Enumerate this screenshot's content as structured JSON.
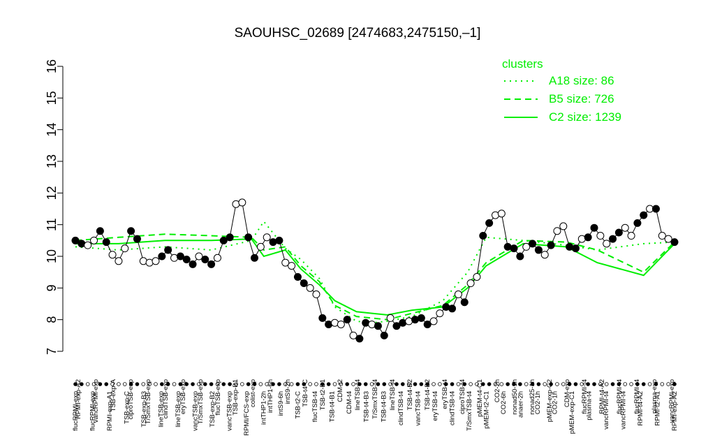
{
  "chart_data": {
    "type": "line",
    "title": "SAOUHSC_02689 [2474683,2475150,–1]",
    "xlabel": "",
    "ylabel": "",
    "ylim": [
      7,
      16
    ],
    "yticks": [
      7,
      8,
      9,
      10,
      11,
      12,
      13,
      14,
      15,
      16
    ],
    "grid": false,
    "legend": {
      "title": "clusters",
      "placement": "top-right",
      "entries": [
        {
          "label": "A18 size: 86",
          "style": "dotted"
        },
        {
          "label": "B5 size: 726",
          "style": "dashed"
        },
        {
          "label": "C2 size: 1239",
          "style": "solid"
        }
      ]
    },
    "colors": {
      "clusters": "#00ee00",
      "data": "#000000",
      "point_fill_dark": "#000000",
      "point_fill_light": "#ffffff"
    },
    "upper_labels": [
      "RPMI-exp-A2",
      "vancRPMI-exp",
      "TSB-exp-A",
      "ciproTSB-exp",
      "T/SmxTSB-exp",
      "clindTSB-exp",
      "eryTSB-exp",
      "T/SmxTSB-exp",
      "flucTSB-exp",
      "TSB-exp-B1",
      "colist-exp",
      "intTHP1-6h",
      "intS9-2h",
      "TSB-t4-C",
      "TSB-t2-B1",
      "CDM-t2",
      "lineTSB-t4",
      "T/SmxTSB-t4",
      "lineTSB-t4",
      "TSB-t4-B2",
      "TSB-t4-B2",
      "eryTSB-t4",
      "ciproTSB-t4",
      "pMEM-t4-C1",
      "CO2-2h",
      "nonad50-1h",
      "nonad25-1h",
      "pMEM-exp-C2",
      "CDM-exp",
      "flucRPMI-t4",
      "RPMI-t4-A2",
      "flucRPMI-t4",
      "flucRPMI-t4",
      "plasma-exp",
      "vancRPMI-exp"
    ],
    "lower_labels": [
      "flucRPMI-exp",
      "flucRPMI-exp",
      "RPMI-exp-A1",
      "TSB-exp-C",
      "TSB-exp-B3",
      "lineTSB-exp",
      "lineTSB-exp",
      "vancTSB-exp",
      "TSB-exp-B2",
      "vancTSB-exp",
      "RPMI/FCS-exp",
      "intTHP1-2h",
      "intS9-6h",
      "TSB-t2-C",
      "flucTSB-t4",
      "TSB-t4-B1",
      "CDM-t4",
      "TSB-t4-B3",
      "TSB-t4-B3",
      "clindTSB-t4",
      "vancTSB-t4",
      "eryTSB-t4",
      "clindTSB-t4",
      "T/SmxTSB-t4",
      "pMEM-t2-C1",
      "CO2-6h",
      "anaer-2h",
      "CO2-1h",
      "CO2-1h",
      "pMEM-exp-C1",
      "plasma-t4",
      "vancRPMI-t4",
      "vancRPMI-t4",
      "RPMI-t4-A2",
      "RPMI-t2-A1",
      "RPMI-exp-A2"
    ],
    "series": [
      {
        "style": "solid",
        "x": [
          1,
          15,
          30,
          45,
          58,
          62,
          69,
          74,
          80,
          85,
          92,
          97,
          102,
          110,
          120,
          128,
          134,
          146,
          160,
          170,
          185,
          195
        ],
        "y": [
          10.4,
          10.4,
          10.5,
          10.5,
          10.55,
          10.0,
          10.2,
          9.6,
          9.1,
          8.6,
          8.25,
          8.2,
          8.15,
          8.3,
          8.4,
          9.0,
          9.7,
          10.4,
          10.3,
          9.8,
          9.4,
          10.4
        ]
      },
      {
        "style": "dashed",
        "x": [
          1,
          15,
          30,
          45,
          58,
          62,
          69,
          74,
          80,
          85,
          92,
          97,
          102,
          110,
          120,
          128,
          134,
          146,
          160,
          170,
          185,
          195
        ],
        "y": [
          10.5,
          10.6,
          10.7,
          10.65,
          10.6,
          10.2,
          10.3,
          9.7,
          9.2,
          8.45,
          8.1,
          8.05,
          8.0,
          8.2,
          8.45,
          9.1,
          9.8,
          10.5,
          10.45,
          10.2,
          9.5,
          10.45
        ]
      },
      {
        "style": "dotted",
        "x": [
          1,
          15,
          30,
          45,
          58,
          62,
          69,
          74,
          80,
          85,
          92,
          97,
          102,
          110,
          120,
          128,
          134,
          146,
          160,
          170,
          185,
          195
        ],
        "y": [
          10.3,
          10.2,
          10.3,
          10.2,
          10.5,
          11.1,
          10.25,
          9.9,
          9.3,
          8.4,
          7.95,
          7.9,
          7.95,
          8.1,
          8.6,
          9.5,
          10.6,
          10.5,
          10.35,
          10.2,
          10.4,
          10.45
        ]
      }
    ],
    "points": {
      "x": [
        1,
        3,
        5,
        7,
        9,
        11,
        13,
        15,
        17,
        19,
        21,
        23,
        25,
        27,
        29,
        31,
        33,
        35,
        37,
        39,
        41,
        43,
        45,
        47,
        49,
        51,
        53,
        55,
        57,
        59,
        61,
        63,
        65,
        67,
        69,
        71,
        73,
        75,
        77,
        79,
        81,
        83,
        85,
        87,
        89,
        91,
        93,
        95,
        97,
        99,
        101,
        103,
        105,
        107,
        109,
        111,
        113,
        115,
        117,
        119,
        121,
        123,
        125,
        127,
        129,
        131,
        133,
        135,
        137,
        139,
        141,
        143,
        145,
        147,
        149,
        151,
        153,
        155,
        157,
        159,
        161,
        163,
        165,
        167,
        169,
        171,
        173,
        175,
        177,
        179,
        181,
        183,
        185,
        187,
        189,
        191,
        193,
        195
      ],
      "y": [
        10.5,
        10.4,
        10.35,
        10.5,
        10.8,
        10.45,
        10.05,
        9.85,
        10.25,
        10.8,
        10.55,
        9.85,
        9.8,
        9.85,
        10.0,
        10.2,
        9.95,
        10.0,
        9.9,
        9.75,
        10.0,
        9.9,
        9.75,
        9.95,
        10.5,
        10.6,
        11.65,
        11.7,
        10.6,
        9.95,
        10.3,
        10.6,
        10.45,
        10.5,
        9.8,
        9.7,
        9.35,
        9.15,
        9.0,
        8.8,
        8.05,
        7.85,
        7.9,
        7.85,
        8.0,
        7.5,
        7.4,
        7.9,
        7.85,
        7.8,
        7.5,
        8.05,
        7.8,
        7.9,
        7.95,
        8.0,
        8.05,
        7.85,
        7.95,
        8.2,
        8.4,
        8.35,
        8.8,
        8.55,
        9.15,
        9.35,
        10.65,
        11.05,
        11.3,
        11.35,
        10.3,
        10.25,
        10.0,
        10.3,
        10.4,
        10.2,
        10.05,
        10.35,
        10.8,
        10.95,
        10.3,
        10.25,
        10.55,
        10.6,
        10.9,
        10.65,
        10.4,
        10.55,
        10.75,
        10.9,
        10.65,
        11.05,
        11.3,
        11.5,
        11.5,
        10.65,
        10.55,
        10.45
      ],
      "filled": [
        true,
        true,
        false,
        false,
        true,
        true,
        false,
        false,
        false,
        true,
        true,
        false,
        false,
        false,
        true,
        true,
        false,
        true,
        true,
        true,
        false,
        true,
        true,
        false,
        true,
        true,
        false,
        false,
        true,
        true,
        false,
        false,
        true,
        true,
        false,
        false,
        true,
        true,
        false,
        false,
        true,
        true,
        false,
        false,
        true,
        false,
        true,
        true,
        false,
        true,
        true,
        false,
        true,
        true,
        false,
        true,
        true,
        true,
        false,
        false,
        true,
        true,
        false,
        true,
        false,
        false,
        true,
        true,
        false,
        false,
        true,
        true,
        true,
        false,
        true,
        true,
        false,
        true,
        false,
        false,
        true,
        true,
        false,
        true,
        true,
        false,
        false,
        true,
        true,
        false,
        false,
        true,
        true,
        false,
        true,
        false,
        false,
        true
      ]
    }
  }
}
